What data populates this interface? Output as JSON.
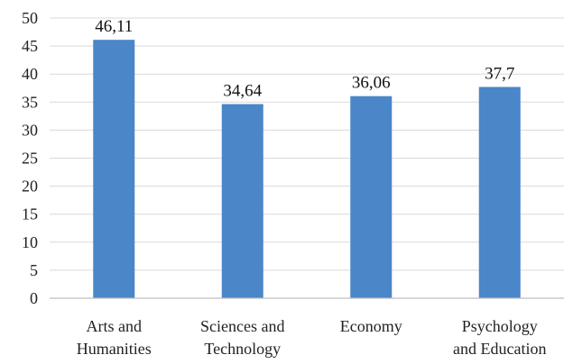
{
  "chart_data": {
    "type": "bar",
    "title": "",
    "xlabel": "",
    "ylabel": "",
    "categories": [
      [
        "Arts and",
        "Humanities"
      ],
      [
        "Sciences and",
        "Technology"
      ],
      [
        "Economy"
      ],
      [
        "Psychology",
        "and Education"
      ]
    ],
    "values": [
      46.11,
      34.64,
      36.06,
      37.7
    ],
    "data_labels": [
      "46,11",
      "34,64",
      "36,06",
      "37,7"
    ],
    "ylim": [
      0,
      50
    ],
    "yticks": [
      0,
      5,
      10,
      15,
      20,
      25,
      30,
      35,
      40,
      45,
      50
    ],
    "grid": true,
    "legend": "none",
    "bar_color": "#4a86c8",
    "grid_color": "#d9d9d9"
  }
}
